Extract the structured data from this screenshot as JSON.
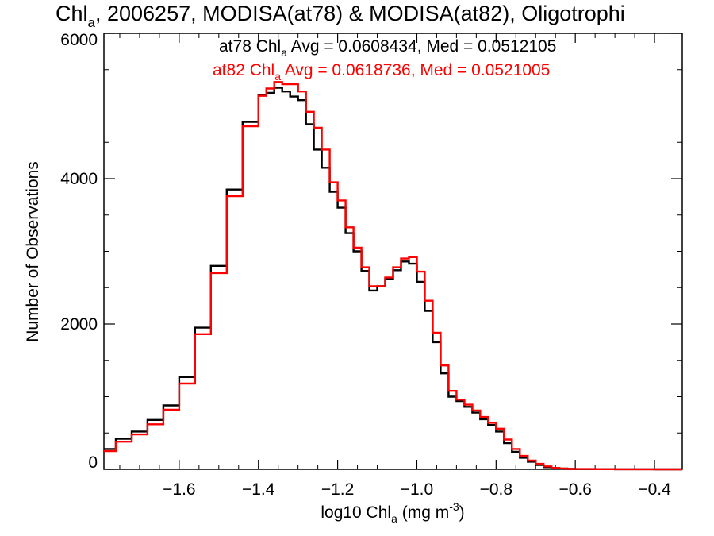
{
  "chart_data": {
    "type": "line",
    "title": {
      "pre": "Chl",
      "sub": "a",
      "post": ", 2006257, MODISA(at78) & MODISA(at82), Oligotrophi"
    },
    "xlabel": {
      "pre": "log10 Chl",
      "sub": "a",
      "mid": " (mg m",
      "sup": "-3",
      "post": ")"
    },
    "ylabel": "Number of Observations",
    "xlim": [
      -1.79,
      -0.33
    ],
    "ylim": [
      0,
      6000
    ],
    "x_ticks": [
      -1.6,
      -1.4,
      -1.2,
      -1.0,
      -0.8,
      -0.6,
      -0.4
    ],
    "x_tick_labels": [
      "−1.6",
      "−1.4",
      "−1.2",
      "−1.0",
      "−0.8",
      "−0.6",
      "−0.4"
    ],
    "y_ticks": [
      0,
      2000,
      4000,
      6000
    ],
    "y_tick_labels": [
      "0",
      "2000",
      "4000",
      "6000"
    ],
    "legend": [
      {
        "pre": "at78 Chl",
        "sub": "a",
        "post": " Avg = 0.0608434, Med = 0.0512105",
        "color": "#000000"
      },
      {
        "pre": "at82 Chl",
        "sub": "a",
        "post": " Avg = 0.0618736, Med = 0.0521005",
        "color": "#ff0000"
      }
    ],
    "series": [
      {
        "name": "at78",
        "color": "#000000",
        "x": [
          -1.79,
          -1.76,
          -1.72,
          -1.68,
          -1.64,
          -1.6,
          -1.56,
          -1.52,
          -1.48,
          -1.44,
          -1.4,
          -1.38,
          -1.36,
          -1.34,
          -1.32,
          -1.3,
          -1.28,
          -1.26,
          -1.24,
          -1.22,
          -1.2,
          -1.18,
          -1.16,
          -1.14,
          -1.12,
          -1.1,
          -1.08,
          -1.06,
          -1.04,
          -1.02,
          -1.0,
          -0.98,
          -0.96,
          -0.94,
          -0.92,
          -0.9,
          -0.88,
          -0.86,
          -0.84,
          -0.82,
          -0.8,
          -0.78,
          -0.76,
          -0.74,
          -0.72,
          -0.7,
          -0.68,
          -0.66,
          -0.64,
          -0.62,
          -0.6,
          -0.55,
          -0.5,
          -0.45,
          -0.4,
          -0.33
        ],
        "values": [
          280,
          420,
          520,
          680,
          880,
          1270,
          1950,
          2800,
          3850,
          4780,
          5150,
          5180,
          5250,
          5200,
          5130,
          5080,
          4750,
          4400,
          4150,
          3820,
          3600,
          3250,
          3000,
          2730,
          2460,
          2520,
          2620,
          2740,
          2860,
          2830,
          2580,
          2180,
          1750,
          1320,
          1000,
          940,
          860,
          780,
          690,
          610,
          520,
          360,
          240,
          160,
          105,
          60,
          30,
          15,
          10,
          5,
          3,
          2,
          1,
          1,
          0,
          0
        ]
      },
      {
        "name": "at82",
        "color": "#ff0000",
        "x": [
          -1.79,
          -1.76,
          -1.72,
          -1.68,
          -1.64,
          -1.6,
          -1.56,
          -1.52,
          -1.48,
          -1.44,
          -1.4,
          -1.38,
          -1.36,
          -1.34,
          -1.32,
          -1.3,
          -1.28,
          -1.26,
          -1.24,
          -1.22,
          -1.2,
          -1.18,
          -1.16,
          -1.14,
          -1.12,
          -1.1,
          -1.08,
          -1.06,
          -1.04,
          -1.02,
          -1.0,
          -0.98,
          -0.96,
          -0.94,
          -0.92,
          -0.9,
          -0.88,
          -0.86,
          -0.84,
          -0.82,
          -0.8,
          -0.78,
          -0.76,
          -0.74,
          -0.72,
          -0.7,
          -0.68,
          -0.66,
          -0.64,
          -0.62,
          -0.6,
          -0.55,
          -0.5,
          -0.45,
          -0.4,
          -0.33
        ],
        "values": [
          250,
          380,
          480,
          620,
          820,
          1180,
          1860,
          2700,
          3760,
          4720,
          5140,
          5240,
          5330,
          5300,
          5300,
          5200,
          4920,
          4700,
          4400,
          3950,
          3700,
          3330,
          3050,
          2780,
          2520,
          2520,
          2640,
          2780,
          2900,
          2920,
          2720,
          2320,
          1880,
          1430,
          1080,
          960,
          890,
          810,
          720,
          640,
          560,
          410,
          280,
          185,
          120,
          75,
          40,
          20,
          12,
          6,
          4,
          2,
          1,
          1,
          0,
          0
        ]
      }
    ],
    "grid": false
  }
}
